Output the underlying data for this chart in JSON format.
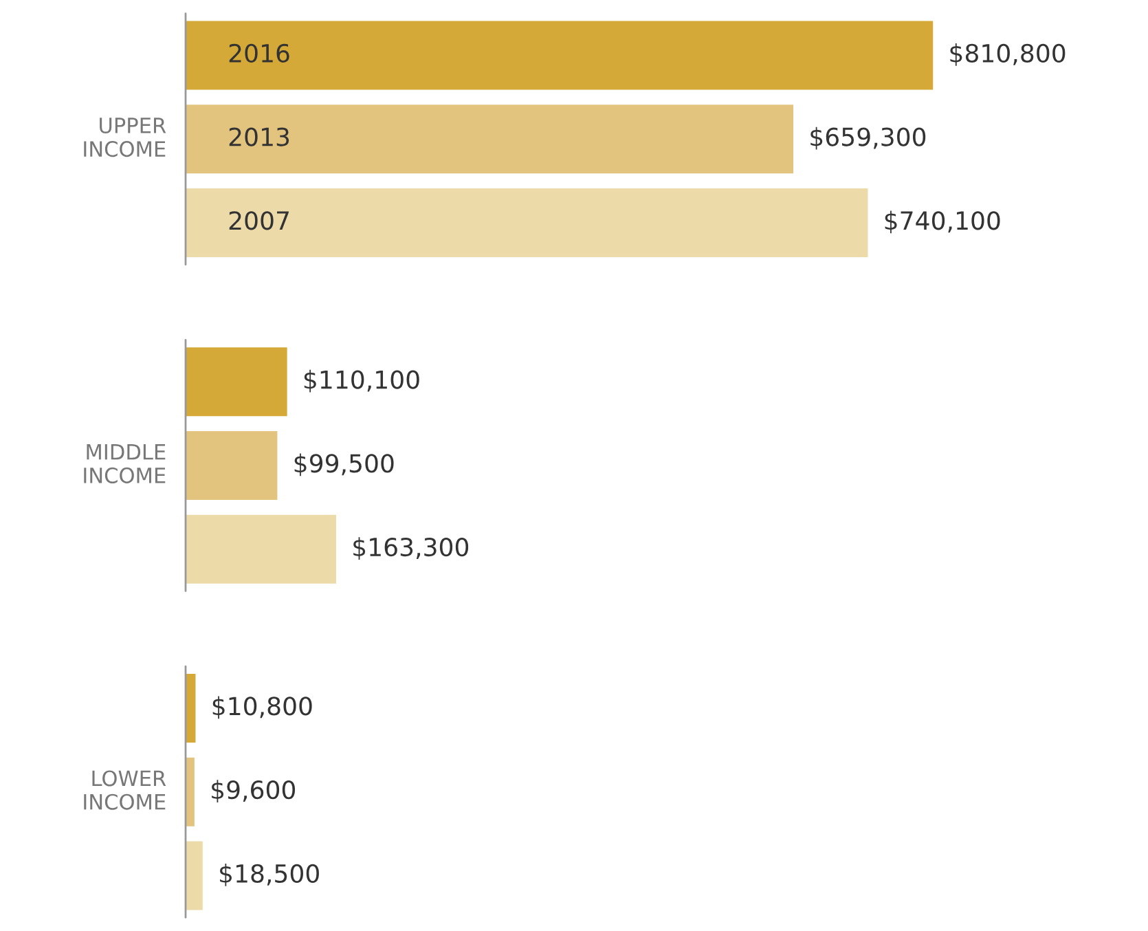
{
  "chart_data": {
    "type": "bar",
    "orientation": "horizontal",
    "categories": [
      "UPPER\nINCOME",
      "MIDDLE\nINCOME",
      "LOWER\nINCOME"
    ],
    "series": [
      {
        "name": "2016",
        "color": "#d4a937",
        "values": [
          810800,
          110100,
          10800
        ],
        "value_labels": [
          "$810,800",
          "$110,100",
          "$10,800"
        ]
      },
      {
        "name": "2013",
        "color": "#e2c47e",
        "values": [
          659300,
          99500,
          9600
        ],
        "value_labels": [
          "$659,300",
          "$99,500",
          "$9,600"
        ]
      },
      {
        "name": "2007",
        "color": "#ecdaa9",
        "values": [
          740100,
          163300,
          18500
        ],
        "value_labels": [
          "$740,100",
          "$163,300",
          "$18,500"
        ]
      }
    ],
    "legend": false
  }
}
